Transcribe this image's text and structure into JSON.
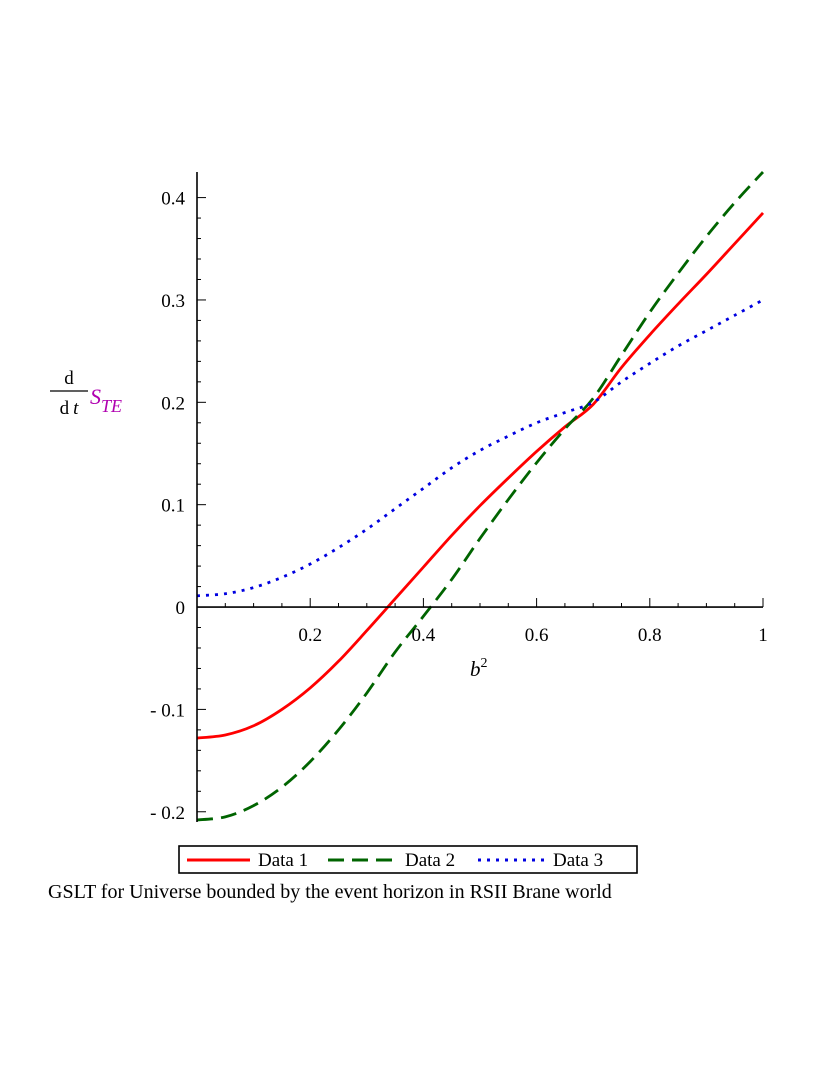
{
  "chart_data": {
    "type": "line",
    "xlabel": {
      "base": "b",
      "sup": "2"
    },
    "ylabel": {
      "num": "d",
      "den_d": "d",
      "den_t": "t",
      "symbol": "S",
      "subscript": "TE"
    },
    "xlim": [
      0,
      1
    ],
    "ylim": [
      -0.21,
      0.425
    ],
    "x_ticks": [
      0.2,
      0.4,
      0.6,
      0.8,
      1
    ],
    "x_tick_labels": [
      "0.2",
      "0.4",
      "0.6",
      "0.8",
      "1"
    ],
    "y_ticks": [
      -0.2,
      -0.1,
      0,
      0.1,
      0.2,
      0.3,
      0.4
    ],
    "y_tick_labels": [
      "- 0.2",
      "- 0.1",
      "0",
      "0.1",
      "0.2",
      "0.3",
      "0.4"
    ],
    "grid": false,
    "legend_position": "bottom",
    "colors": {
      "series_1": "#ff0000",
      "series_2": "#006400",
      "series_3": "#0000e0",
      "ylabel_symbol": "#b000b0"
    },
    "x": [
      0,
      0.05,
      0.1,
      0.15,
      0.2,
      0.25,
      0.3,
      0.35,
      0.4,
      0.45,
      0.5,
      0.55,
      0.6,
      0.65,
      0.7,
      0.75,
      0.8,
      0.85,
      0.9,
      0.95,
      1
    ],
    "series": [
      {
        "name": "Data 1",
        "style": "solid",
        "values": [
          -0.128,
          -0.125,
          -0.116,
          -0.1,
          -0.079,
          -0.053,
          -0.023,
          0.008,
          0.039,
          0.07,
          0.099,
          0.126,
          0.152,
          0.176,
          0.198,
          0.234,
          0.266,
          0.296,
          0.325,
          0.355,
          0.385
        ]
      },
      {
        "name": "Data 2",
        "style": "dashed",
        "values": [
          -0.208,
          -0.205,
          -0.194,
          -0.176,
          -0.151,
          -0.12,
          -0.084,
          -0.044,
          -0.009,
          0.027,
          0.067,
          0.105,
          0.141,
          0.174,
          0.204,
          0.246,
          0.288,
          0.326,
          0.362,
          0.395,
          0.425
        ]
      },
      {
        "name": "Data 3",
        "style": "dotted",
        "values": [
          0.011,
          0.013,
          0.019,
          0.029,
          0.042,
          0.058,
          0.076,
          0.096,
          0.116,
          0.136,
          0.153,
          0.167,
          0.18,
          0.19,
          0.2,
          0.22,
          0.238,
          0.255,
          0.27,
          0.285,
          0.3
        ]
      }
    ],
    "caption": "GSLT for Universe bounded by the event horizon in RSII Brane world"
  }
}
